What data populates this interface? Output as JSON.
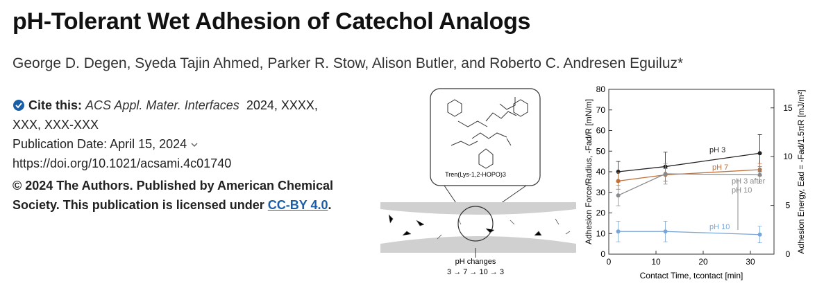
{
  "header": {
    "title": "pH-Tolerant Wet Adhesion of Catechol Analogs",
    "authors": "George D. Degen, Syeda Tajin Ahmed, Parker R. Stow, Alison Butler, and Roberto C. Andresen Eguiluz*"
  },
  "citation": {
    "label": "Cite this:",
    "journal": "ACS Appl. Mater. Interfaces",
    "details": "2024, XXXX, XXX, XXX-XXX",
    "publication_date": "Publication Date: April 15, 2024",
    "doi": "https://doi.org/10.1021/acsami.4c01740",
    "license": "© 2024 The Authors. Published by American Chemical Society. This publication is licensed under",
    "license_link": "CC-BY 4.0",
    "license_end": "."
  },
  "figure": {
    "molecule_label": "Tren(Lys-1,2-HOPO)3",
    "ph_caption": "pH changes",
    "ph_sequence": "3 → 7 → 10 → 3",
    "chart": {
      "type": "line",
      "xlabel": "Contact Time, tcontact [min]",
      "ylabel": "Adhesion Force/Radius, -Fad/R [mN/m]",
      "y2label": "Adhesion Energy, Ead = -Fad/1.5πR [mJ/m²]",
      "x": [
        2,
        12,
        32
      ],
      "xlim": [
        0,
        35
      ],
      "xticks": [
        0,
        10,
        20,
        30
      ],
      "ylim": [
        0,
        80
      ],
      "yticks": [
        0,
        10,
        20,
        30,
        40,
        50,
        60,
        70,
        80
      ],
      "y2lim": [
        0,
        16.9
      ],
      "y2ticks": [
        0,
        5,
        10,
        15
      ],
      "series": [
        {
          "name": "pH 3",
          "color": "#222222",
          "values": [
            40,
            42.5,
            49
          ],
          "errors": [
            5,
            7,
            9
          ]
        },
        {
          "name": "pH 7",
          "color": "#c0703a",
          "values": [
            35.5,
            38.5,
            41
          ],
          "errors": [
            4,
            3,
            3
          ]
        },
        {
          "name": "pH 3 after pH 10",
          "color": "#8a8a8a",
          "values": [
            28.5,
            39,
            38.5
          ],
          "errors": [
            5,
            5,
            4
          ]
        },
        {
          "name": "pH 10",
          "color": "#7aa6d6",
          "values": [
            11,
            11,
            9.5
          ],
          "errors": [
            5,
            5,
            4
          ]
        }
      ]
    }
  }
}
